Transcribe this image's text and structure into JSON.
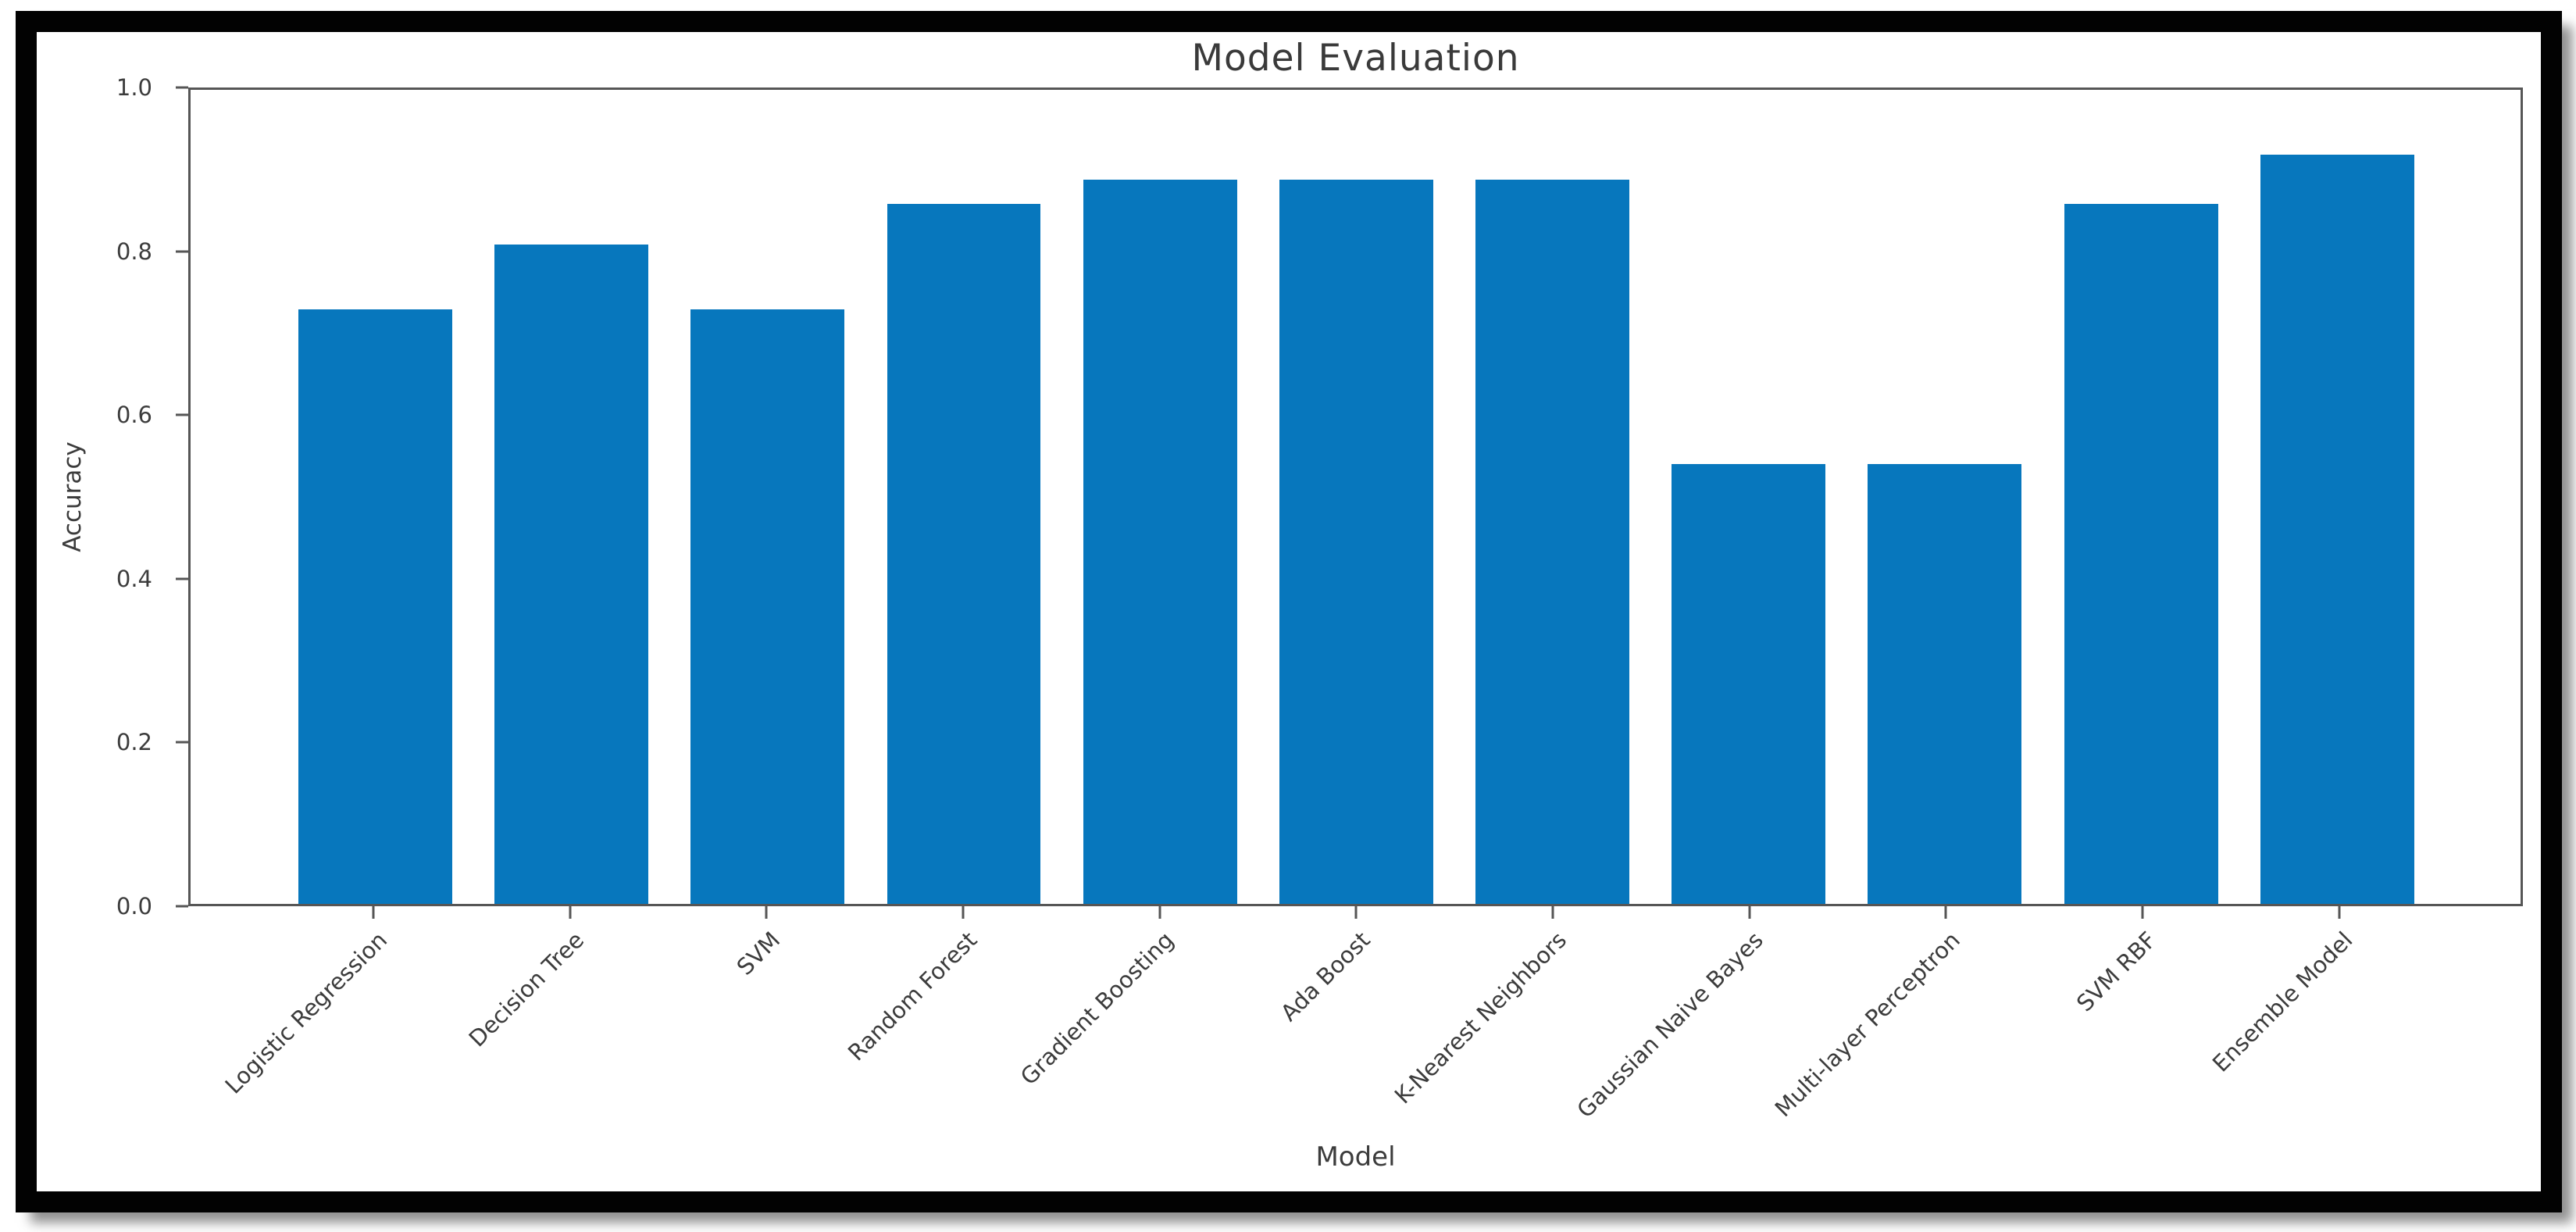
{
  "chart_data": {
    "type": "bar",
    "title": "Model Evaluation",
    "xlabel": "Model",
    "ylabel": "Accuracy",
    "ylim": [
      0.0,
      1.0
    ],
    "yticks": [
      "0.0",
      "0.2",
      "0.4",
      "0.6",
      "0.8",
      "1.0"
    ],
    "categories": [
      "Logistic Regression",
      "Decision Tree",
      "SVM",
      "Random Forest",
      "Gradient Boosting",
      "Ada Boost",
      "K-Nearest Neighbors",
      "Gaussian Naive Bayes",
      "Multi-layer Perceptron",
      "SVM RBF",
      "Ensemble Model"
    ],
    "values": [
      0.73,
      0.81,
      0.73,
      0.86,
      0.89,
      0.89,
      0.89,
      0.54,
      0.54,
      0.86,
      0.92
    ],
    "grid": false,
    "legend_position": "none",
    "x_tick_rotation": 45,
    "colors": {
      "bar": "#0777bd",
      "spine": "#565656",
      "text": "#3c3c3c",
      "title": "#3a3a3a",
      "frame_border": "#020202",
      "background": "#ffffff"
    }
  }
}
